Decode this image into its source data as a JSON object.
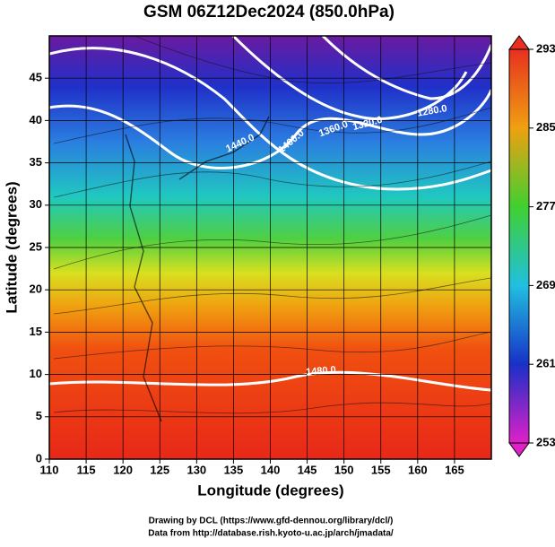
{
  "chart_data": {
    "type": "map",
    "title": "GSM 06Z12Dec2024 (850.0hPa)",
    "x_label": "Longitude (degrees)",
    "y_label": "Latitude  (degrees)",
    "xlim": [
      110,
      170
    ],
    "ylim": [
      0,
      50
    ],
    "xticks": [
      110,
      115,
      120,
      125,
      130,
      135,
      140,
      145,
      150,
      155,
      160,
      165
    ],
    "yticks": [
      0,
      5,
      10,
      15,
      20,
      25,
      30,
      35,
      40,
      45
    ],
    "grid": true,
    "colorbar": {
      "lim": [
        253,
        293
      ],
      "ticks": [
        253,
        261,
        269,
        277,
        285,
        293
      ]
    },
    "contour_labels": [
      "1440.0",
      "1400.0",
      "1360.0",
      "1320.0",
      "1280.0",
      "1480.0"
    ],
    "credits": [
      "Drawing by DCL (https://www.gfd-dennou.org/library/dcl/)",
      "Data from http://database.rish.kyoto-u.ac.jp/arch/jmadata/"
    ]
  }
}
